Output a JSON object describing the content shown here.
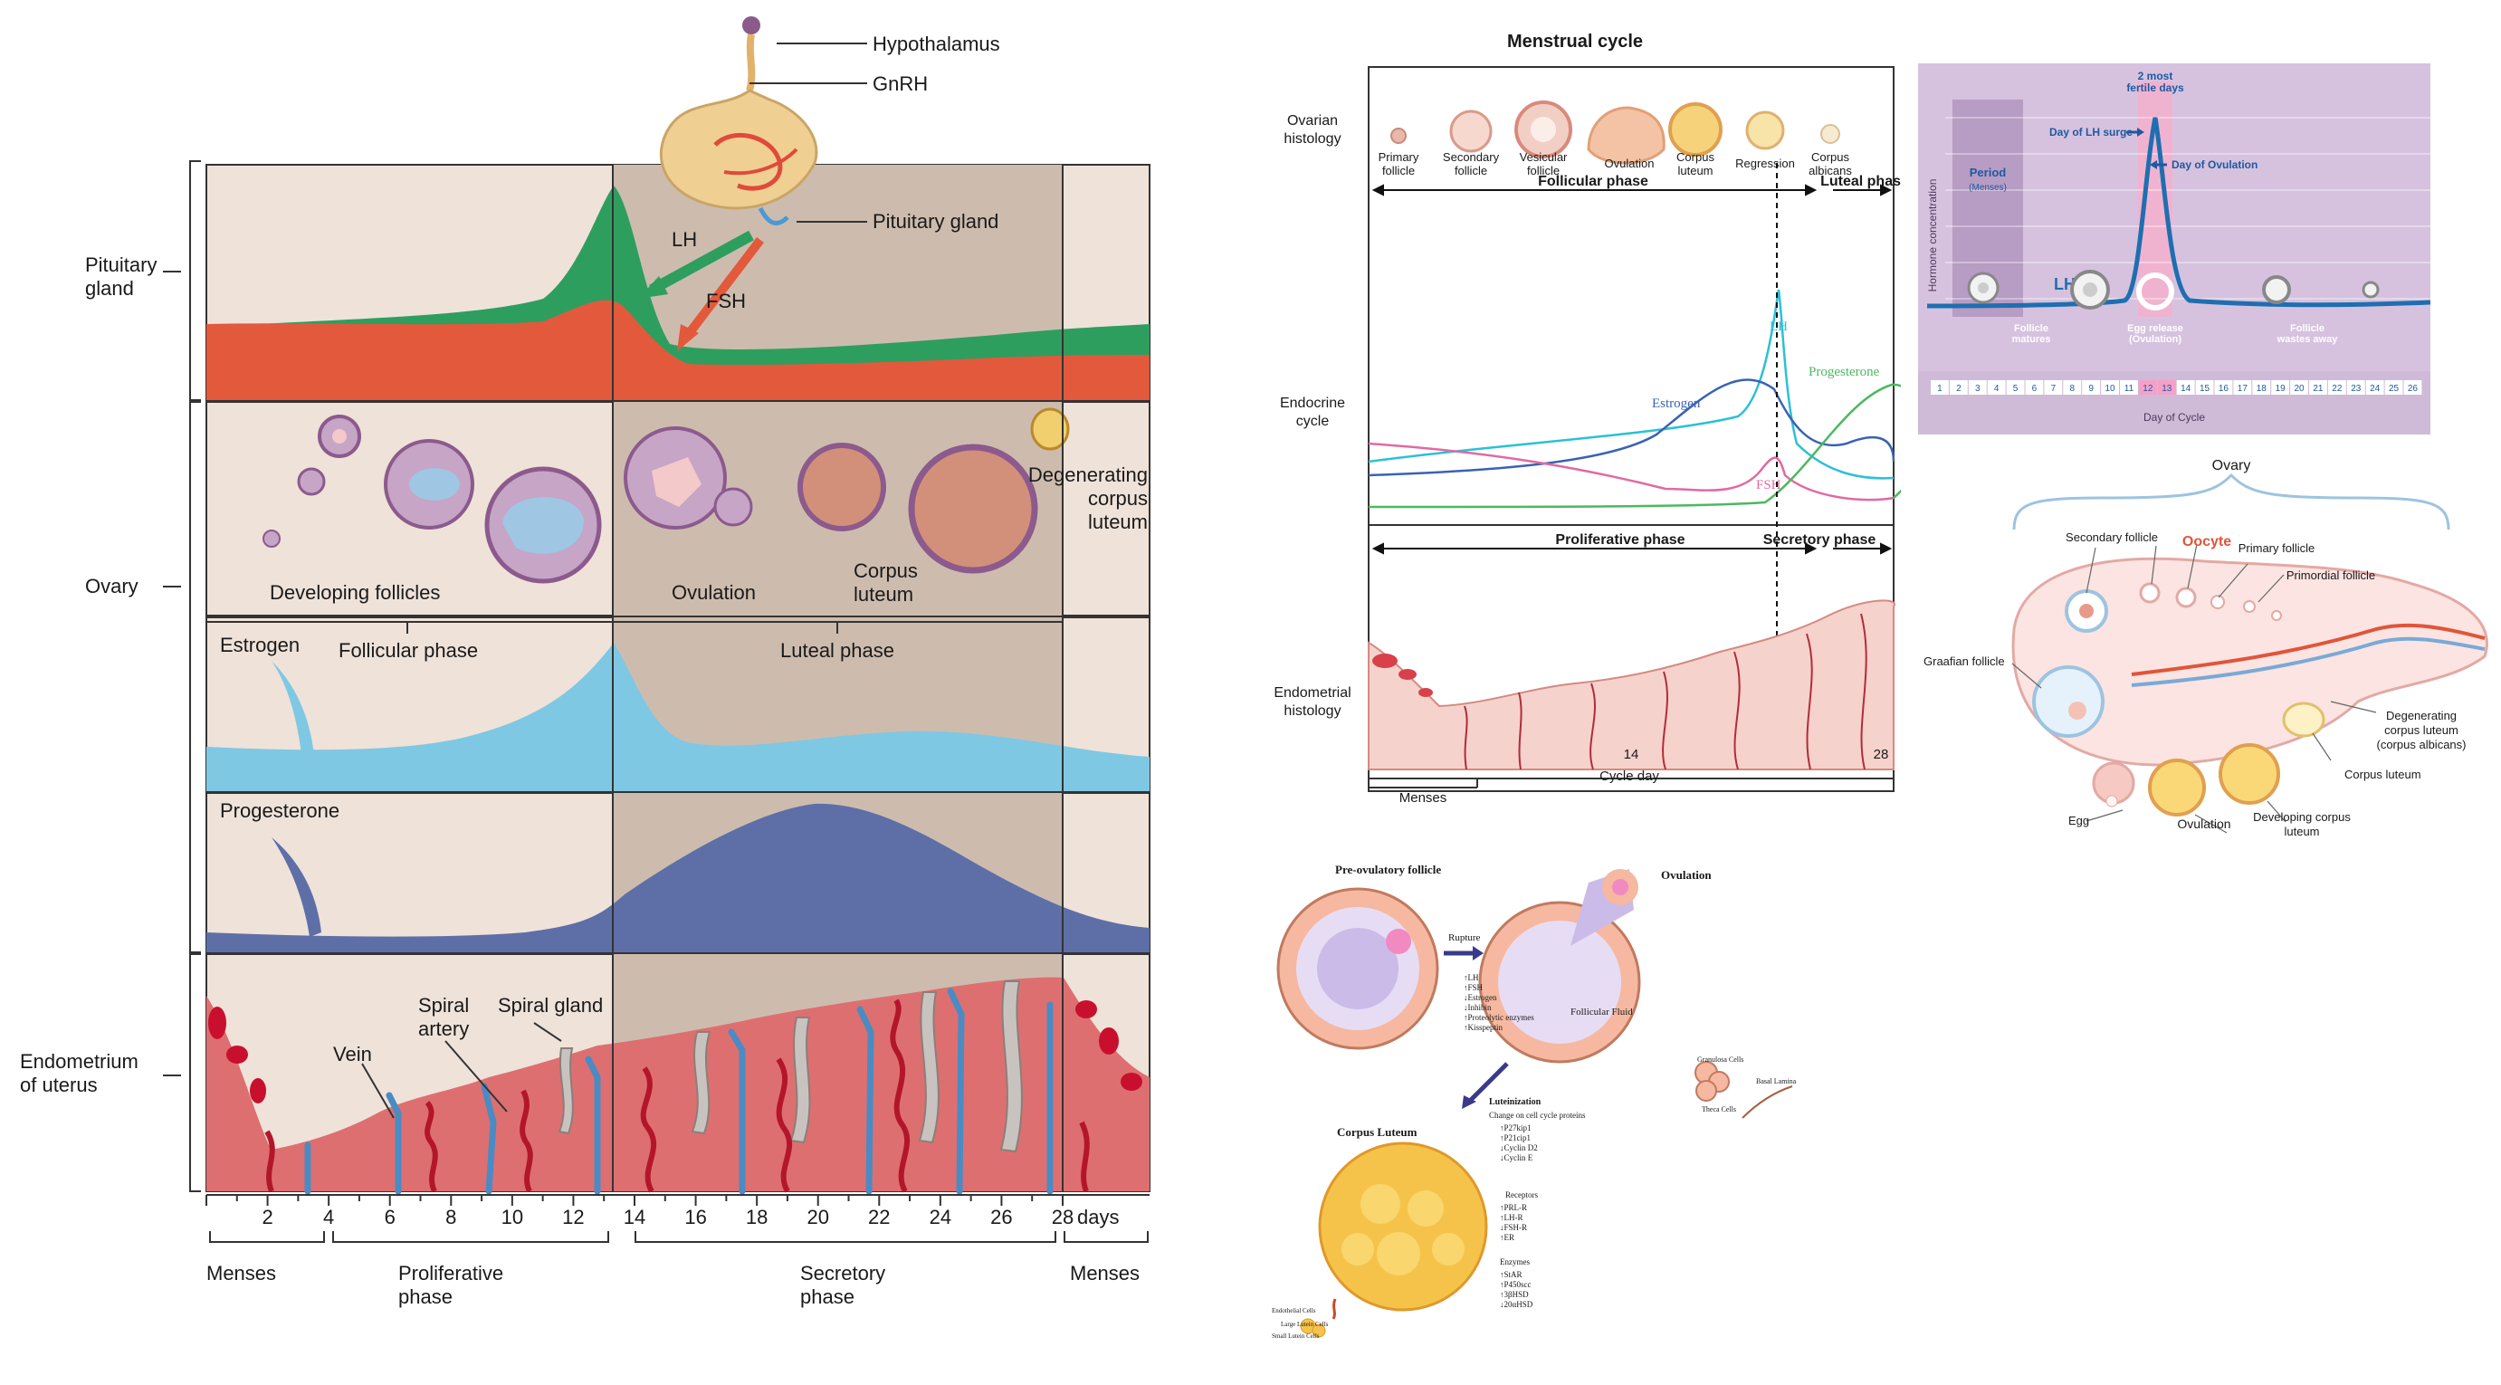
{
  "panel_a": {
    "hypothalamus": "Hypothalamus",
    "gnrh": "GnRH",
    "pituitary_gland": "Pituitary gland",
    "lh": "LH",
    "fsh": "FSH",
    "row_pituitary": "Pituitary gland",
    "row_ovary": "Ovary",
    "row_endometrium": "Endometrium of uterus",
    "developing_follicles": "Developing follicles",
    "ovulation": "Ovulation",
    "corpus_luteum": "Corpus luteum",
    "degenerating": "Degenerating corpus luteum",
    "estrogen": "Estrogen",
    "progesterone": "Progesterone",
    "follicular_phase": "Follicular phase",
    "luteal_phase": "Luteal phase",
    "vein": "Vein",
    "spiral_artery": "Spiral artery",
    "spiral_gland": "Spiral gland",
    "days": [
      "2",
      "4",
      "6",
      "8",
      "10",
      "12",
      "14",
      "16",
      "18",
      "20",
      "22",
      "24",
      "26",
      "28"
    ],
    "days_unit": "days",
    "menses": "Menses",
    "proliferative": "Proliferative phase",
    "secretory": "Secretory phase"
  },
  "panel_b": {
    "title": "Menstrual cycle",
    "ovarian_histology": "Ovarian histology",
    "endocrine_cycle": "Endocrine cycle",
    "endometrial_histology": "Endometrial histology",
    "stages": [
      "Primary follicle",
      "Secondary follicle",
      "Vesicular follicle",
      "Ovulation",
      "Corpus luteum",
      "Regression",
      "Corpus albicans"
    ],
    "follicular_phase": "Follicular phase",
    "luteal_phase": "Luteal phase",
    "lh": "LH",
    "estrogen": "Estrogen",
    "fsh": "FSH",
    "progesterone": "Progesterone",
    "proliferative_phase": "Proliferative phase",
    "secretory_phase": "Secretory phase",
    "menses": "Menses",
    "cycle_day": "Cycle day",
    "tick_14": "14",
    "tick_28": "28"
  },
  "panel_c": {
    "fertile": "2 most fertile days",
    "lh_surge": "Day of LH surge",
    "day_of_ovulation": "Day of Ovulation",
    "period": "Period",
    "menses": "(Menses)",
    "y_label": "Hormone concentration",
    "lh": "LH",
    "follicle_matures": "Follicle matures",
    "egg_release": "Egg release (Ovulation)",
    "follicle_wastes": "Follicle wastes away",
    "days": [
      "1",
      "2",
      "3",
      "4",
      "5",
      "6",
      "7",
      "8",
      "9",
      "10",
      "11",
      "12",
      "13",
      "14",
      "15",
      "16",
      "17",
      "18",
      "19",
      "20",
      "21",
      "22",
      "23",
      "24",
      "25",
      "26"
    ],
    "x_label": "Day of Cycle"
  },
  "panel_d": {
    "ovary": "Ovary",
    "oocyte": "Oocyte",
    "secondary_follicle": "Secondary follicle",
    "primary_follicle": "Primary follicle",
    "primordial_follicle": "Primordial follicle",
    "graafian_follicle": "Graafian follicle",
    "degenerating": "Degenerating corpus luteum (corpus albicans)",
    "corpus_luteum": "Corpus luteum",
    "egg": "Egg",
    "ovulation": "Ovulation",
    "developing_cl": "Developing corpus luteum"
  },
  "panel_e": {
    "pre_ovulatory": "Pre-ovulatory follicle",
    "ovulation": "Ovulation",
    "rupture": "Rupture",
    "rupture_list": [
      "LH",
      "FSH",
      "Estrogen",
      "Inhibin",
      "Proteolytic enzymes",
      "Kisspeptin"
    ],
    "follicular_fluid": "Follicular Fluid",
    "granulosa": "Granulosa Cells",
    "basal_lamina": "Basal Lamina",
    "theca": "Theca Cells",
    "luteinization": "Luteinization",
    "cell_cycle": "Change on cell cycle proteins",
    "cell_cycle_list": [
      "P27kip1",
      "P21cip1",
      "Cyclin D2",
      "Cyclin E"
    ],
    "receptors": "Receptors",
    "receptor_list": [
      "PRL-R",
      "LH-R",
      "FSH-R",
      "ER"
    ],
    "enzymes": "Enzymes",
    "enzyme_list": [
      "StAR",
      "P450scc",
      "3βHSD",
      "20αHSD"
    ],
    "corpus_luteum": "Corpus Luteum",
    "endothelial": "Endothelial Cells",
    "large_lutein": "Large Lutein Cells",
    "small_lutein": "Small Lutein Cells"
  }
}
